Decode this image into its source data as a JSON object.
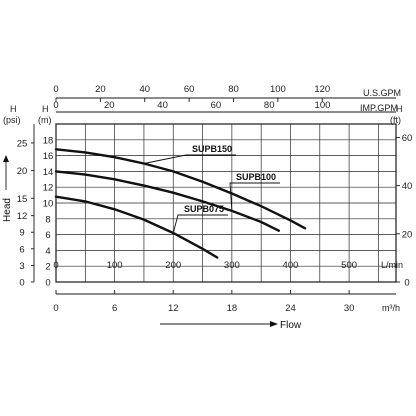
{
  "chart_data": {
    "type": "line",
    "title": "",
    "xlabel": "Flow",
    "ylabel": "Head",
    "x_unit_main": "L/min",
    "xlim": [
      0,
      580
    ],
    "x_ticks": [
      0,
      100,
      200,
      300,
      400,
      500
    ],
    "y_unit_main": "(m)",
    "y_unit_main_symbol": "H",
    "ylim": [
      0,
      20
    ],
    "y_ticks": [
      0,
      2,
      4,
      6,
      8,
      10,
      12,
      14,
      16,
      18
    ],
    "secondary_axes": {
      "bottom_m3h": {
        "unit": "m³/h",
        "ticks": [
          "0",
          "6",
          "12",
          "18",
          "24",
          "30"
        ],
        "tick_positions_lpm": [
          0,
          100,
          200,
          300,
          400,
          500
        ]
      },
      "top_usgpm": {
        "unit": "U.S.GPM",
        "ticks": [
          "0",
          "20",
          "40",
          "60",
          "80",
          "100",
          "120"
        ],
        "tick_positions_lpm": [
          0,
          75.7,
          151.4,
          227.1,
          302.8,
          378.5,
          454.2
        ]
      },
      "top_impgpm": {
        "unit": "IMP.GPM",
        "ticks": [
          "0",
          "20",
          "40",
          "60",
          "80",
          "100"
        ],
        "tick_positions_lpm": [
          0,
          90.9,
          181.8,
          272.8,
          363.7,
          454.6
        ]
      },
      "left_psi": {
        "unit_symbol": "H",
        "unit": "(psi)",
        "ticks": [
          "0",
          "3",
          "6",
          "9",
          "12",
          "15",
          "20",
          "25"
        ],
        "tick_positions_m": [
          0,
          2.1,
          4.2,
          6.3,
          8.4,
          10.6,
          14.1,
          17.6
        ]
      },
      "right_ft": {
        "unit_symbol": "H",
        "unit": "(ft)",
        "ticks": [
          "0",
          "20",
          "40",
          "60"
        ],
        "tick_positions_m": [
          0,
          6.1,
          12.2,
          18.3
        ]
      }
    },
    "series": [
      {
        "name": "SUPB150",
        "x": [
          0,
          50,
          100,
          150,
          200,
          250,
          300,
          350,
          400,
          425
        ],
        "y": [
          16.8,
          16.4,
          15.8,
          15.0,
          14.0,
          12.7,
          11.2,
          9.6,
          7.8,
          6.8
        ]
      },
      {
        "name": "SUPB100",
        "x": [
          0,
          50,
          100,
          150,
          200,
          250,
          300,
          350,
          380
        ],
        "y": [
          14.0,
          13.6,
          13.0,
          12.2,
          11.3,
          10.2,
          9.0,
          7.6,
          6.5
        ]
      },
      {
        "name": "SUPB075",
        "x": [
          0,
          50,
          100,
          150,
          200,
          250,
          275
        ],
        "y": [
          10.8,
          10.2,
          9.2,
          7.9,
          6.2,
          4.2,
          3.1
        ]
      }
    ],
    "grid": true,
    "legend": "inline labels"
  }
}
